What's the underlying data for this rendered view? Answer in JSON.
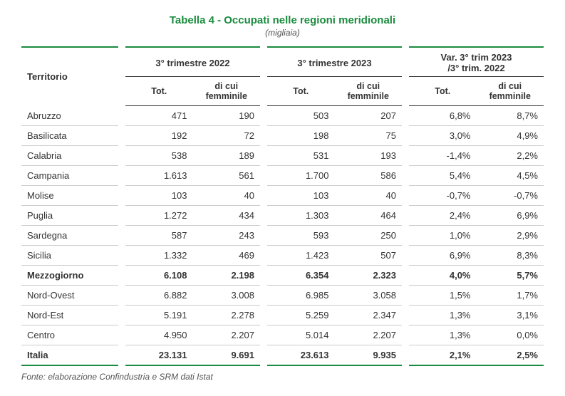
{
  "title": "Tabella 4 - Occupati nelle regioni meridionali",
  "subtitle": "(migliaia)",
  "header": {
    "territorio": "Territorio",
    "group1": "3° trimestre 2022",
    "group2": "3° trimestre 2023",
    "group3_line1": "Var. 3° trim 2023",
    "group3_line2": "/3° trim. 2022",
    "tot": "Tot.",
    "femminile_line1": "di cui",
    "femminile_line2": "femminile"
  },
  "rows": [
    {
      "territorio": "Abruzzo",
      "t22_tot": "471",
      "t22_fem": "190",
      "t23_tot": "503",
      "t23_fem": "207",
      "var_tot": "6,8%",
      "var_fem": "8,7%",
      "bold": false
    },
    {
      "territorio": "Basilicata",
      "t22_tot": "192",
      "t22_fem": "72",
      "t23_tot": "198",
      "t23_fem": "75",
      "var_tot": "3,0%",
      "var_fem": "4,9%",
      "bold": false
    },
    {
      "territorio": "Calabria",
      "t22_tot": "538",
      "t22_fem": "189",
      "t23_tot": "531",
      "t23_fem": "193",
      "var_tot": "-1,4%",
      "var_fem": "2,2%",
      "bold": false
    },
    {
      "territorio": "Campania",
      "t22_tot": "1.613",
      "t22_fem": "561",
      "t23_tot": "1.700",
      "t23_fem": "586",
      "var_tot": "5,4%",
      "var_fem": "4,5%",
      "bold": false
    },
    {
      "territorio": "Molise",
      "t22_tot": "103",
      "t22_fem": "40",
      "t23_tot": "103",
      "t23_fem": "40",
      "var_tot": "-0,7%",
      "var_fem": "-0,7%",
      "bold": false
    },
    {
      "territorio": "Puglia",
      "t22_tot": "1.272",
      "t22_fem": "434",
      "t23_tot": "1.303",
      "t23_fem": "464",
      "var_tot": "2,4%",
      "var_fem": "6,9%",
      "bold": false
    },
    {
      "territorio": "Sardegna",
      "t22_tot": "587",
      "t22_fem": "243",
      "t23_tot": "593",
      "t23_fem": "250",
      "var_tot": "1,0%",
      "var_fem": "2,9%",
      "bold": false
    },
    {
      "territorio": "Sicilia",
      "t22_tot": "1.332",
      "t22_fem": "469",
      "t23_tot": "1.423",
      "t23_fem": "507",
      "var_tot": "6,9%",
      "var_fem": "8,3%",
      "bold": false
    },
    {
      "territorio": "Mezzogiorno",
      "t22_tot": "6.108",
      "t22_fem": "2.198",
      "t23_tot": "6.354",
      "t23_fem": "2.323",
      "var_tot": "4,0%",
      "var_fem": "5,7%",
      "bold": true
    },
    {
      "territorio": "Nord-Ovest",
      "t22_tot": "6.882",
      "t22_fem": "3.008",
      "t23_tot": "6.985",
      "t23_fem": "3.058",
      "var_tot": "1,5%",
      "var_fem": "1,7%",
      "bold": false
    },
    {
      "territorio": "Nord-Est",
      "t22_tot": "5.191",
      "t22_fem": "2.278",
      "t23_tot": "5.259",
      "t23_fem": "2.347",
      "var_tot": "1,3%",
      "var_fem": "3,1%",
      "bold": false
    },
    {
      "territorio": "Centro",
      "t22_tot": "4.950",
      "t22_fem": "2.207",
      "t23_tot": "5.014",
      "t23_fem": "2.207",
      "var_tot": "1,3%",
      "var_fem": "0,0%",
      "bold": false
    },
    {
      "territorio": "Italia",
      "t22_tot": "23.131",
      "t22_fem": "9.691",
      "t23_tot": "23.613",
      "t23_fem": "9.935",
      "var_tot": "2,1%",
      "var_fem": "2,5%",
      "bold": true
    }
  ],
  "source_label": "Fonte:",
  "source_text": " elaborazione Confindustria e SRM dati Istat",
  "colors": {
    "accent": "#1a8c3e",
    "rule": "#cccccc",
    "text": "#333333"
  }
}
